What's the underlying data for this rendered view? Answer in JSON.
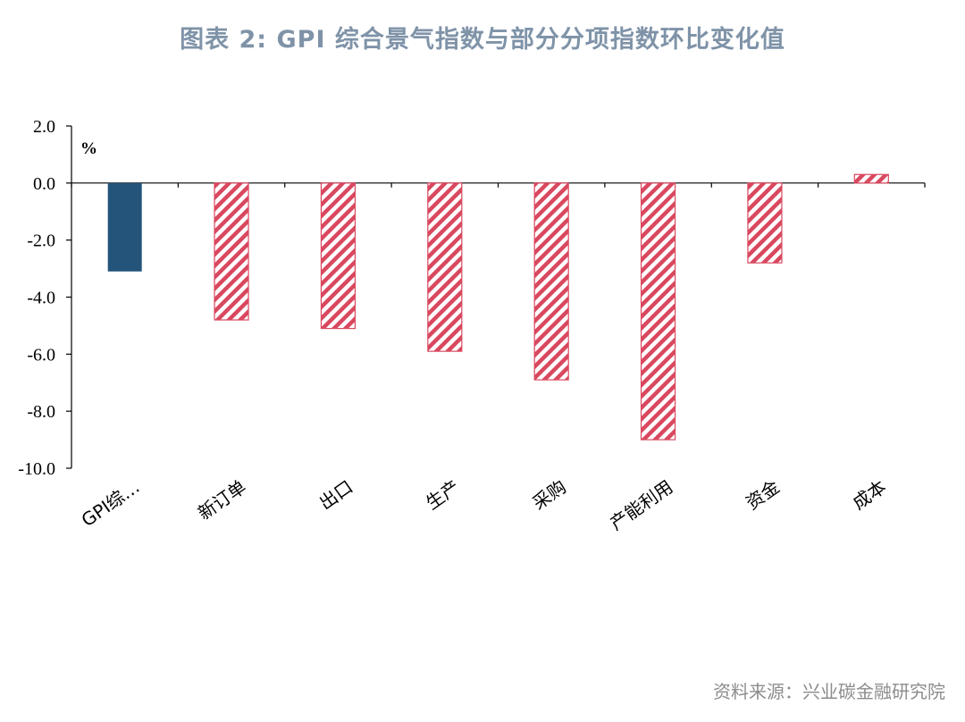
{
  "header": {
    "title": "图表 2:   GPI 综合景气指数与部分分项指数环比变化值"
  },
  "footer": {
    "source": "资料来源：兴业碳金融研究院"
  },
  "colors": {
    "title": "#7f93a8",
    "solid_bar": "#24547a",
    "hatch_bar": "#d9485f",
    "source": "#8c8c8c"
  },
  "chart_data": {
    "type": "bar",
    "unit_label": "%",
    "categories": [
      "GPI综…",
      "新订单",
      "出口",
      "生产",
      "采购",
      "产能利用",
      "资金",
      "成本"
    ],
    "values": [
      -3.1,
      -4.8,
      -5.1,
      -5.9,
      -6.9,
      -9.0,
      -2.8,
      0.3
    ],
    "bar_styles": [
      "solid",
      "hatched",
      "hatched",
      "hatched",
      "hatched",
      "hatched",
      "hatched",
      "hatched"
    ],
    "ylim": [
      -10.0,
      2.0
    ],
    "yticks": [
      "2.0",
      "0.0",
      "-2.0",
      "-4.0",
      "-6.0",
      "-8.0",
      "-10.0"
    ],
    "ytick_values": [
      2,
      0,
      -2,
      -4,
      -6,
      -8,
      -10
    ],
    "grid": false,
    "legend": "none"
  }
}
